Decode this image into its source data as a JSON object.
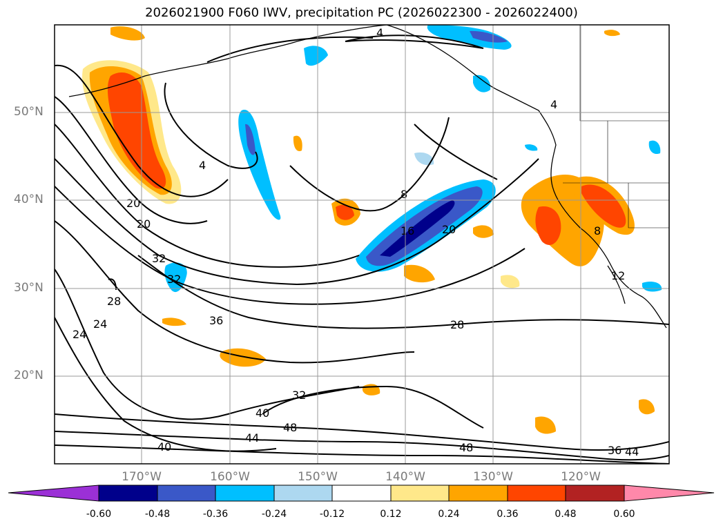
{
  "title": "2026021900 F060 IWV, precipitation PC (2026022300 - 2026022400)",
  "lat_labels": [
    "50°N",
    "40°N",
    "30°N",
    "20°N"
  ],
  "lon_labels": [
    "170°W",
    "160°W",
    "150°W",
    "140°W",
    "130°W",
    "120°W"
  ],
  "contour_labels": [
    "4",
    "4",
    "4",
    "8",
    "8",
    "12",
    "16",
    "20",
    "20",
    "20",
    "24",
    "24",
    "28",
    "28",
    "32",
    "32",
    "32",
    "36",
    "36",
    "40",
    "40",
    "44",
    "44",
    "48",
    "48"
  ],
  "colorbar": {
    "ticks": [
      "-0.60",
      "-0.48",
      "-0.36",
      "-0.24",
      "-0.12",
      "0.12",
      "0.24",
      "0.36",
      "0.48",
      "0.60"
    ],
    "colors": [
      "#9b30d6",
      "#00008b",
      "#3a58c8",
      "#00bfff",
      "#add8f0",
      "#ffffff",
      "#ffe88a",
      "#ffa500",
      "#ff4500",
      "#b22222",
      "#ff88aa"
    ]
  }
}
